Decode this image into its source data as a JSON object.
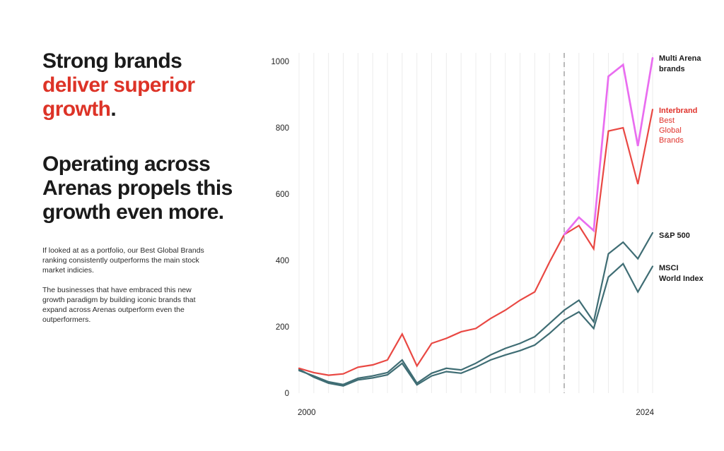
{
  "intro": {
    "heading1": {
      "line1_black": "Strong brands",
      "line2_red": "deliver superior",
      "line3_red_word": "growth",
      "line3_black_period": "."
    },
    "heading2_lines": [
      "Operating across",
      "Arenas propels this",
      "growth even more."
    ],
    "paragraph1": "If looked at as a portfolio, our Best Global Brands ranking consistently outperforms the main stock market indicies.",
    "paragraph2": "The businesses that have embraced this new growth paradigm by building iconic brands that expand across Arenas outperform even the outperformers."
  },
  "colors": {
    "accent_red": "#dd3327",
    "line_red": "#e94843",
    "line_magenta": "#e96df0",
    "line_teal": "#3f6d74",
    "grid": "#ececec",
    "dashed_line": "#a8a8a8",
    "tick_text": "#222222"
  },
  "chart_data": {
    "type": "line",
    "title": "",
    "xlabel": "",
    "ylabel": "",
    "x_axis_shown_labels": [
      "2000",
      "2024"
    ],
    "years": [
      2000,
      2001,
      2002,
      2003,
      2004,
      2005,
      2006,
      2007,
      2008,
      2009,
      2010,
      2011,
      2012,
      2013,
      2014,
      2015,
      2016,
      2017,
      2018,
      2019,
      2020,
      2021,
      2022,
      2023,
      2024
    ],
    "yticks": [
      0,
      200,
      400,
      600,
      800,
      1000
    ],
    "ylim": [
      0,
      1040
    ],
    "grid": "vertical gridline per year, no horizontal gridlines",
    "legend_position": "right of plot, beside line endpoints",
    "dashed_vline_year": 2018,
    "series": [
      {
        "id": "multi_arena",
        "name": "Multi Arena brands",
        "color": "#e96df0",
        "label_lines": [
          "Multi Arena",
          "brands"
        ],
        "label_color": "#1a1a1a",
        "values": [
          null,
          null,
          null,
          null,
          null,
          null,
          null,
          null,
          null,
          null,
          null,
          null,
          null,
          null,
          null,
          null,
          null,
          null,
          478,
          530,
          490,
          955,
          990,
          745,
          1010
        ]
      },
      {
        "id": "interbrand",
        "name": "Interbrand Best Global Brands",
        "color": "#e94843",
        "label_lines": [
          "Interbrand",
          "Best",
          "Global",
          "Brands"
        ],
        "label_color": "#e0332c",
        "values": [
          75,
          62,
          54,
          58,
          78,
          85,
          100,
          178,
          82,
          150,
          165,
          185,
          195,
          225,
          250,
          280,
          305,
          395,
          478,
          505,
          435,
          790,
          800,
          630,
          855
        ]
      },
      {
        "id": "sp500",
        "name": "S&P 500",
        "color": "#3f6d74",
        "label_lines": [
          "S&P 500"
        ],
        "label_color": "#1a1a1a",
        "values": [
          68,
          52,
          34,
          26,
          45,
          52,
          62,
          100,
          30,
          60,
          75,
          70,
          90,
          115,
          135,
          150,
          170,
          210,
          250,
          280,
          215,
          420,
          455,
          405,
          483
        ]
      },
      {
        "id": "msci",
        "name": "MSCI World Index",
        "color": "#3f6d74",
        "label_lines": [
          "MSCI",
          "World Index"
        ],
        "label_color": "#1a1a1a",
        "values": [
          72,
          48,
          30,
          22,
          40,
          46,
          55,
          90,
          25,
          52,
          65,
          60,
          78,
          100,
          115,
          128,
          145,
          180,
          220,
          245,
          195,
          350,
          390,
          305,
          382
        ]
      }
    ]
  }
}
